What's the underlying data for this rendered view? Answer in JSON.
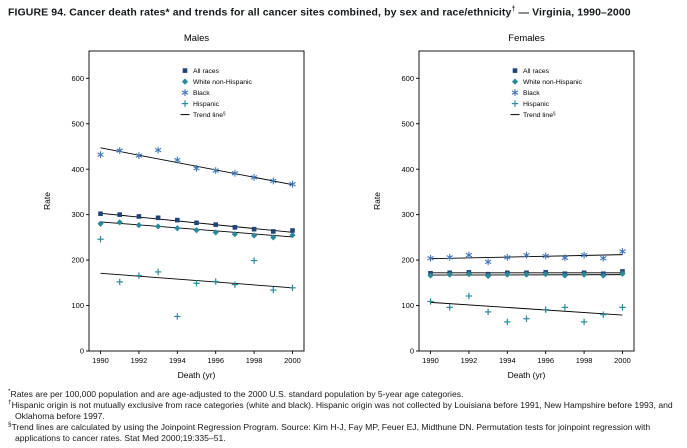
{
  "title_main": "FIGURE 94. Cancer death rates* and trends for all cancer sites combined, by sex and race/ethnicity",
  "title_sup": "†",
  "title_rest": " — Virginia, 1990–2000",
  "colors": {
    "all_races": "#1f4477",
    "white_non_hispanic": "#2a8a99",
    "black": "#4077b8",
    "hispanic": "#2a8a99",
    "trend_line": "#000000"
  },
  "chart_data": [
    {
      "type": "scatter",
      "title": "Males",
      "xlabel": "Death (yr)",
      "ylabel": "Rate",
      "xlim": [
        1989.4,
        2000.6
      ],
      "ylim": [
        0,
        660
      ],
      "xticks": [
        1990,
        1992,
        1994,
        1996,
        1998,
        2000
      ],
      "yticks": [
        0,
        100,
        200,
        300,
        400,
        500,
        600
      ],
      "x": [
        1990,
        1991,
        1992,
        1993,
        1994,
        1995,
        1996,
        1997,
        1998,
        1999,
        2000
      ],
      "trend_label": "Trend line§",
      "legend_position": "upper-middle",
      "series": [
        {
          "name": "All races",
          "marker": "square",
          "color": "#1f4477",
          "values": [
            302,
            300,
            296,
            293,
            288,
            282,
            278,
            272,
            268,
            263,
            265
          ],
          "trend": {
            "x": [
              1990,
              2000
            ],
            "y": [
              303,
              261
            ]
          }
        },
        {
          "name": "White non-Hispanic",
          "marker": "diamond",
          "color": "#2a8a99",
          "values": [
            280,
            283,
            277,
            274,
            270,
            266,
            261,
            257,
            254,
            250,
            255
          ],
          "trend": {
            "x": [
              1990,
              2000
            ],
            "y": [
              284,
              251
            ]
          }
        },
        {
          "name": "Black",
          "marker": "asterisk",
          "color": "#4077b8",
          "values": [
            432,
            441,
            430,
            442,
            420,
            402,
            397,
            391,
            382,
            374,
            367
          ],
          "trend": {
            "x": [
              1990,
              2000
            ],
            "y": [
              447,
              366
            ]
          }
        },
        {
          "name": "Hispanic",
          "marker": "plus",
          "color": "#2a8a99",
          "values": [
            246,
            152,
            166,
            174,
            76,
            149,
            153,
            146,
            199,
            134,
            139
          ],
          "trend": {
            "x": [
              1990,
              2000
            ],
            "y": [
              171,
              139
            ]
          }
        }
      ]
    },
    {
      "type": "scatter",
      "title": "Females",
      "xlabel": "Death (yr)",
      "ylabel": "Rate",
      "xlim": [
        1989.4,
        2000.6
      ],
      "ylim": [
        0,
        660
      ],
      "xticks": [
        1990,
        1992,
        1994,
        1996,
        1998,
        2000
      ],
      "yticks": [
        0,
        100,
        200,
        300,
        400,
        500,
        600
      ],
      "x": [
        1990,
        1991,
        1992,
        1993,
        1994,
        1995,
        1996,
        1997,
        1998,
        1999,
        2000
      ],
      "trend_label": "Trend line§",
      "legend_position": "upper-middle",
      "series": [
        {
          "name": "All races",
          "marker": "square",
          "color": "#1f4477",
          "values": [
            171,
            172,
            173,
            169,
            172,
            172,
            173,
            170,
            172,
            170,
            175
          ],
          "trend": {
            "x": [
              1990,
              2000
            ],
            "y": [
              172,
              172
            ]
          }
        },
        {
          "name": "White non-Hispanic",
          "marker": "diamond",
          "color": "#2a8a99",
          "values": [
            166,
            168,
            169,
            165,
            168,
            168,
            169,
            166,
            168,
            166,
            170
          ],
          "trend": {
            "x": [
              1990,
              2000
            ],
            "y": [
              167,
              168
            ]
          }
        },
        {
          "name": "Black",
          "marker": "asterisk",
          "color": "#4077b8",
          "values": [
            204,
            206,
            211,
            196,
            206,
            211,
            209,
            205,
            211,
            204,
            219
          ],
          "trend": {
            "x": [
              1990,
              2000
            ],
            "y": [
              203,
              212
            ]
          }
        },
        {
          "name": "Hispanic",
          "marker": "plus",
          "color": "#2a8a99",
          "values": [
            109,
            96,
            121,
            86,
            64,
            71,
            91,
            96,
            64,
            80,
            96
          ],
          "trend": {
            "x": [
              1990,
              2000
            ],
            "y": [
              107,
              79
            ]
          }
        }
      ]
    }
  ],
  "footnotes": [
    {
      "marker": "*",
      "text": "Rates are per 100,000 population and are age-adjusted to the 2000 U.S. standard population by 5-year age categories."
    },
    {
      "marker": "†",
      "text": "Hispanic origin is not mutually exclusive from race categories (white and black). Hispanic origin was not collected by Louisiana before 1991, New Hampshire before 1993, and Oklahoma before 1997."
    },
    {
      "marker": "§",
      "text": "Trend lines are calculated by using the Joinpoint Regression Program. Source: Kim H-J, Fay MP, Feuer EJ, Midthune DN. Permutation tests for joinpoint regression with applications to cancer rates. Stat Med 2000;19:335–51."
    }
  ]
}
